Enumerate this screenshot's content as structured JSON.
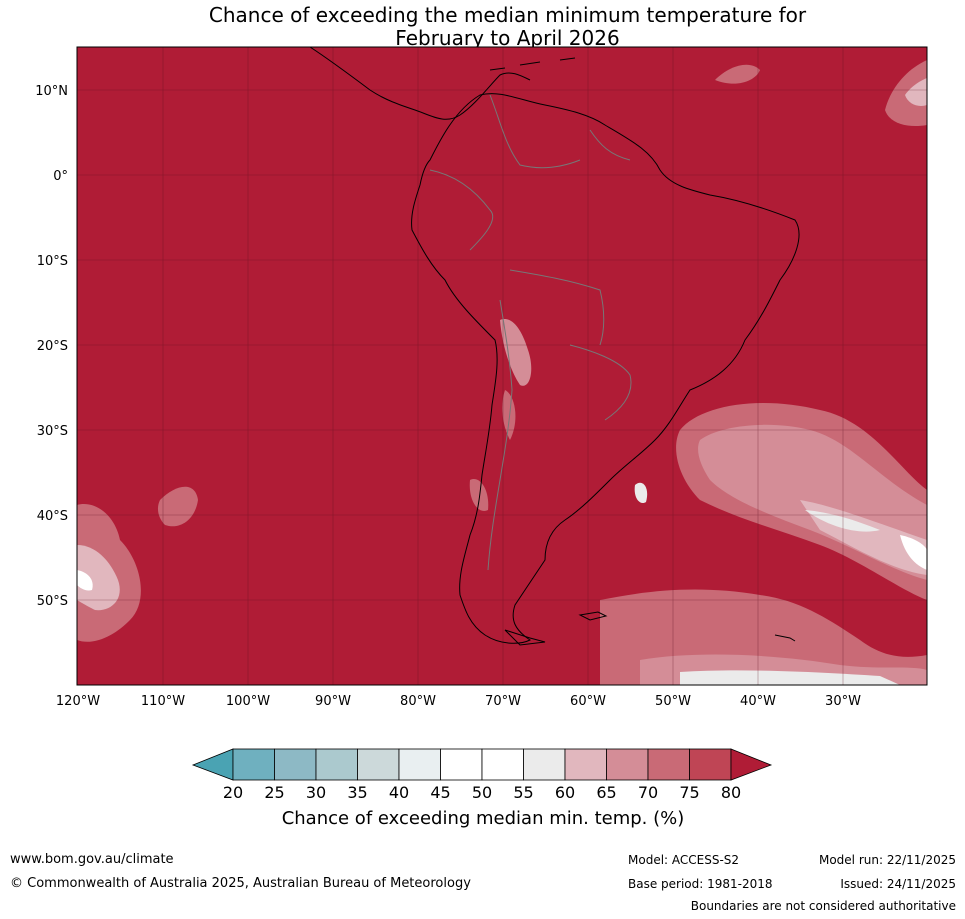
{
  "title_line1": "Chance of exceeding the median minimum temperature for",
  "title_line2": "February to April 2026",
  "map": {
    "lon_ticks": [
      "120°W",
      "110°W",
      "100°W",
      "90°W",
      "80°W",
      "70°W",
      "60°W",
      "50°W",
      "40°W",
      "30°W"
    ],
    "lat_ticks": [
      "10°N",
      "0°",
      "10°S",
      "20°S",
      "30°S",
      "40°S",
      "50°S"
    ],
    "background_color": "#b01c36",
    "grid": true
  },
  "colorbar": {
    "title": "Chance of exceeding median min. temp. (%)",
    "ticks": [
      "20",
      "25",
      "30",
      "35",
      "40",
      "45",
      "50",
      "55",
      "60",
      "65",
      "70",
      "75",
      "80"
    ],
    "colors": [
      "#4aa3b3",
      "#6fb0bf",
      "#8db9c5",
      "#abc9ce",
      "#ccd9da",
      "#e9eff1",
      "#ffffff",
      "#ffffff",
      "#ebebeb",
      "#e1b7be",
      "#d48d97",
      "#c96a76",
      "#bf4555",
      "#b01c36"
    ]
  },
  "footer": {
    "website": "www.bom.gov.au/climate",
    "copyright": "© Commonwealth of Australia 2025, Australian Bureau of Meteorology",
    "model": "Model: ACCESS-S2",
    "base_period": "Base period: 1981-2018",
    "model_run": "Model run: 22/11/2025",
    "issued": "Issued: 24/11/2025",
    "disclaimer": "Boundaries are not considered authoritative"
  }
}
